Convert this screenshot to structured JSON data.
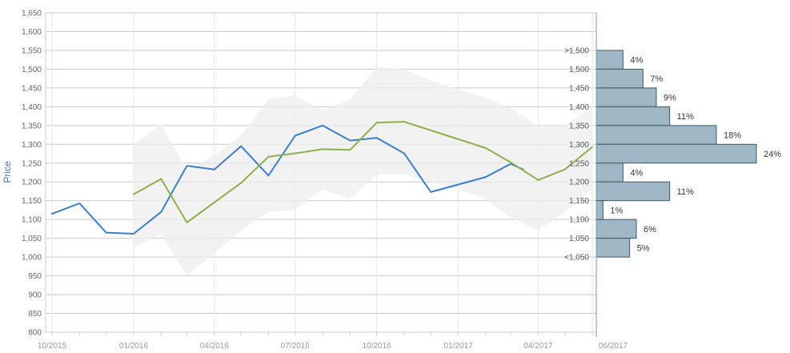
{
  "chart_data": {
    "type": "line",
    "ylabel": "Price",
    "ylim": [
      800,
      1650
    ],
    "yticks": [
      "800",
      "850",
      "900",
      "950",
      "1,000",
      "1,050",
      "1,100",
      "1,150",
      "1,200",
      "1,250",
      "1,300",
      "1,350",
      "1,400",
      "1,450",
      "1,500",
      "1,550",
      "1,600",
      "1,650"
    ],
    "xlim": [
      "2015-10-01",
      "2017-06-01"
    ],
    "xticks": [
      "10/2015",
      "01/2016",
      "04/2016",
      "07/2016",
      "10/2016",
      "01/2017",
      "04/2017",
      "06/2017"
    ],
    "grid": true,
    "colors": {
      "price": "#3a7fce",
      "average": "#8bb14b",
      "band": "#eeeeee",
      "histogram": "#9fb6c4",
      "histogram_border": "#3f5968"
    },
    "series": [
      {
        "key": "price",
        "x": [
          "2015-10-01",
          "2015-11-01",
          "2015-12-01",
          "2016-01-01",
          "2016-02-01",
          "2016-03-01",
          "2016-04-01",
          "2016-05-01",
          "2016-06-01",
          "2016-07-01",
          "2016-08-01",
          "2016-09-01",
          "2016-10-01",
          "2016-11-01",
          "2016-12-01",
          "2017-02-01",
          "2017-03-01",
          "2017-03-15"
        ],
        "y": [
          1115,
          1143,
          1065,
          1062,
          1120,
          1243,
          1233,
          1295,
          1217,
          1323,
          1350,
          1310,
          1317,
          1276,
          1173,
          1213,
          1248,
          1233
        ]
      },
      {
        "key": "average",
        "x": [
          "2016-01-01",
          "2016-02-01",
          "2016-03-01",
          "2016-05-01",
          "2016-06-01",
          "2016-07-01",
          "2016-08-01",
          "2016-09-01",
          "2016-10-01",
          "2016-11-01",
          "2017-02-01",
          "2017-03-01",
          "2017-04-01",
          "2017-05-01",
          "2017-06-01"
        ],
        "y": [
          1167,
          1208,
          1092,
          1197,
          1267,
          1276,
          1287,
          1285,
          1358,
          1360,
          1290,
          1252,
          1205,
          1233,
          1293
        ]
      }
    ],
    "band": {
      "x": [
        "2016-01-01",
        "2016-02-01",
        "2016-03-01",
        "2016-04-01",
        "2016-05-01",
        "2016-06-01",
        "2016-07-01",
        "2016-08-01",
        "2016-09-01",
        "2016-10-01",
        "2016-11-01",
        "2016-12-01",
        "2017-01-01",
        "2017-02-01",
        "2017-03-01",
        "2017-04-01",
        "2017-05-01",
        "2017-06-01"
      ],
      "upper": [
        1300,
        1355,
        1230,
        1270,
        1325,
        1420,
        1430,
        1390,
        1420,
        1505,
        1500,
        1470,
        1445,
        1425,
        1395,
        1350,
        1350,
        1400
      ],
      "lower": [
        1025,
        1060,
        950,
        1010,
        1070,
        1120,
        1125,
        1180,
        1155,
        1220,
        1220,
        1200,
        1180,
        1155,
        1105,
        1070,
        1120,
        1180
      ]
    },
    "histogram": {
      "bins": [
        ">1,500",
        "1,500",
        "1,450",
        "1,400",
        "1,350",
        "1,300",
        "1,250",
        "1,200",
        "1,150",
        "1,100",
        "1,050",
        "<1,050"
      ],
      "percent": [
        4,
        7,
        9,
        11,
        18,
        24,
        4,
        11,
        1,
        6,
        5
      ],
      "labels": [
        "4%",
        "7%",
        "9%",
        "11%",
        "18%",
        "24%",
        "4%",
        "11%",
        "1%",
        "6%",
        "5%"
      ]
    }
  }
}
